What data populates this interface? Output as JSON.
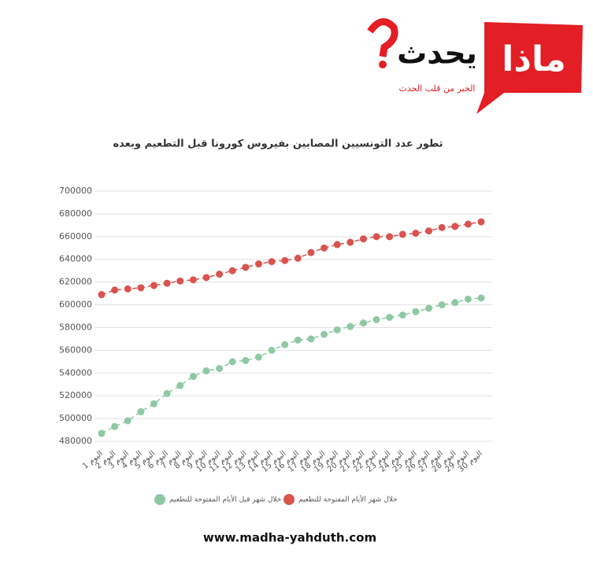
{
  "logo": {
    "word1": "ماذا",
    "word2": "يحدث",
    "tagline": "الخبر من قلب الحدث"
  },
  "chart_data": {
    "type": "line",
    "title": "تطور عدد التونسيين المصابين بفيروس كورونا قبل التطعيم وبعده",
    "categories": [
      "اليوم 1",
      "اليوم 2",
      "اليوم 3",
      "اليوم 4",
      "اليوم 5",
      "اليوم 6",
      "اليوم 7",
      "اليوم 8",
      "اليوم 9",
      "اليوم 10",
      "اليوم 11",
      "اليوم 12",
      "اليوم 13",
      "اليوم 14",
      "اليوم 15",
      "اليوم 16",
      "اليوم 17",
      "اليوم 18",
      "اليوم 19",
      "اليوم 20",
      "اليوم 21",
      "اليوم 22",
      "اليوم 23",
      "اليوم 24",
      "اليوم 25",
      "اليوم 26",
      "اليوم 27",
      "اليوم 28",
      "اليوم 29",
      "اليوم 30"
    ],
    "series": [
      {
        "name": "خلال شهر الأيام المفتوحة للتطعيم",
        "color": "#d9534f",
        "values": [
          609000,
          613000,
          614000,
          615000,
          617000,
          619000,
          621000,
          622000,
          624000,
          627000,
          630000,
          633000,
          636000,
          638000,
          639000,
          641000,
          646000,
          650000,
          653000,
          655000,
          658000,
          660000,
          660000,
          662000,
          663000,
          665000,
          668000,
          669000,
          671000,
          673000
        ]
      },
      {
        "name": "خلال شهر قبل الأيام المفتوحة للتطعيم",
        "color": "#8fc9a3",
        "values": [
          487000,
          493000,
          498000,
          506000,
          513000,
          522000,
          529000,
          537000,
          542000,
          544000,
          550000,
          551000,
          554000,
          560000,
          565000,
          569000,
          570000,
          574000,
          578000,
          581000,
          584000,
          587000,
          589000,
          591000,
          594000,
          597000,
          600000,
          602000,
          605000,
          606000
        ]
      }
    ],
    "ylim": [
      480000,
      700000
    ],
    "yticks": [
      480000,
      500000,
      520000,
      540000,
      560000,
      580000,
      600000,
      620000,
      640000,
      660000,
      680000,
      700000
    ],
    "grid": true
  },
  "footer": {
    "url": "www.madha-yahduth.com"
  }
}
